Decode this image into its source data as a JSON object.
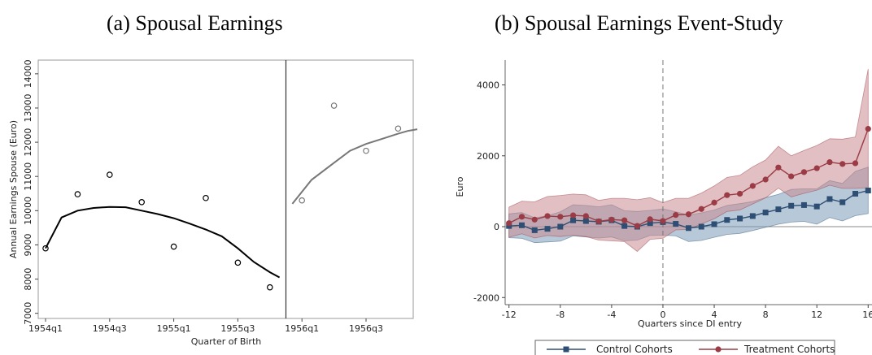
{
  "chart_data": [
    {
      "type": "scatter",
      "title": "(a) Spousal Earnings",
      "xlabel": "Quarter of Birth",
      "ylabel": "Annual Earnings Spouse (Euro)",
      "xticks": [
        "1954q1",
        "1954q3",
        "1955q1",
        "1955q3",
        "1956q1",
        "1956q3"
      ],
      "yticks": [
        7000,
        8000,
        9000,
        10000,
        11000,
        12000,
        13000,
        14000
      ],
      "ylim": [
        6850,
        14400
      ],
      "cutoff_quarter": 7.5,
      "series": [
        {
          "points": [
            [
              0,
              8900
            ],
            [
              1,
              10480
            ],
            [
              2,
              11050
            ],
            [
              3,
              10250
            ],
            [
              4,
              8950
            ],
            [
              5,
              10370
            ],
            [
              6,
              8480
            ],
            [
              7,
              7760
            ]
          ],
          "color": "#000000"
        },
        {
          "points": [
            [
              8,
              10300
            ],
            [
              9,
              13070
            ],
            [
              10,
              11750
            ],
            [
              11,
              12400
            ]
          ],
          "color": "#777777"
        }
      ],
      "fits": [
        {
          "x": [
            0,
            0.5,
            1,
            1.5,
            2,
            2.5,
            3,
            3.5,
            4,
            4.5,
            5,
            5.5,
            6,
            6.5,
            7,
            7.3
          ],
          "y": [
            8900,
            9800,
            10000,
            10080,
            10110,
            10100,
            10000,
            9900,
            9780,
            9620,
            9450,
            9250,
            8900,
            8500,
            8200,
            8050
          ],
          "color": "#000000"
        },
        {
          "x": [
            7.7,
            8.3,
            9,
            9.5,
            10,
            10.5,
            11,
            11.3,
            11.6
          ],
          "y": [
            10200,
            10900,
            11400,
            11750,
            11950,
            12100,
            12250,
            12330,
            12380
          ],
          "color": "#777777"
        }
      ]
    },
    {
      "type": "line",
      "title": "(b) Spousal Earnings Event-Study",
      "xlabel": "Quarters since DI entry",
      "ylabel": "Euro",
      "xticks": [
        -12,
        -8,
        -4,
        0,
        4,
        8,
        12,
        16
      ],
      "yticks": [
        -2000,
        0,
        2000,
        4000
      ],
      "xlim": [
        -12.3,
        16.3
      ],
      "ylim": [
        -2200,
        4700
      ],
      "series": [
        {
          "name": "Control Cohorts",
          "color": "#2e4f73",
          "band_color": "#7b9cba",
          "x": [
            -12,
            -11,
            -10,
            -9,
            -8,
            -7,
            -6,
            -5,
            -4,
            -3,
            -2,
            -1,
            0,
            1,
            2,
            3,
            4,
            5,
            6,
            7,
            8,
            9,
            10,
            11,
            12,
            13,
            14,
            15,
            16
          ],
          "values": [
            20,
            40,
            -100,
            -60,
            0,
            180,
            160,
            140,
            180,
            20,
            0,
            100,
            130,
            80,
            -40,
            0,
            70,
            190,
            230,
            300,
            400,
            490,
            590,
            610,
            570,
            780,
            690,
            930,
            1020
          ],
          "lower": [
            -310,
            -330,
            -450,
            -430,
            -410,
            -260,
            -290,
            -320,
            -290,
            -400,
            -380,
            -250,
            -240,
            -260,
            -420,
            -390,
            -300,
            -220,
            -190,
            -110,
            -20,
            70,
            130,
            150,
            70,
            260,
            160,
            310,
            370
          ],
          "upper": [
            360,
            400,
            250,
            310,
            420,
            620,
            600,
            560,
            620,
            450,
            430,
            460,
            500,
            420,
            330,
            390,
            470,
            600,
            650,
            710,
            820,
            910,
            1050,
            1070,
            1070,
            1300,
            1220,
            1560,
            1680
          ]
        },
        {
          "name": "Treatment Cohorts",
          "color": "#9b3b45",
          "band_color": "#c98a90",
          "x": [
            -12,
            -11,
            -10,
            -9,
            -8,
            -7,
            -6,
            -5,
            -4,
            -3,
            -2,
            -1,
            0,
            1,
            2,
            3,
            4,
            5,
            6,
            7,
            8,
            9,
            10,
            11,
            12,
            13,
            14,
            15,
            16
          ],
          "values": [
            100,
            280,
            200,
            300,
            280,
            320,
            300,
            150,
            200,
            180,
            20,
            210,
            160,
            330,
            350,
            500,
            680,
            890,
            930,
            1150,
            1330,
            1670,
            1420,
            1540,
            1650,
            1820,
            1770,
            1790,
            2760
          ],
          "lower": [
            -300,
            -200,
            -320,
            -250,
            -280,
            -240,
            -280,
            -380,
            -400,
            -420,
            -700,
            -360,
            -330,
            -90,
            -80,
            80,
            220,
            430,
            470,
            640,
            810,
            1090,
            840,
            940,
            1030,
            1170,
            1080,
            1080,
            1100
          ],
          "upper": [
            550,
            720,
            700,
            850,
            880,
            920,
            900,
            740,
            800,
            800,
            760,
            820,
            680,
            800,
            800,
            950,
            1150,
            1390,
            1450,
            1690,
            1880,
            2270,
            2000,
            2150,
            2290,
            2480,
            2470,
            2530,
            4450
          ]
        }
      ]
    }
  ]
}
